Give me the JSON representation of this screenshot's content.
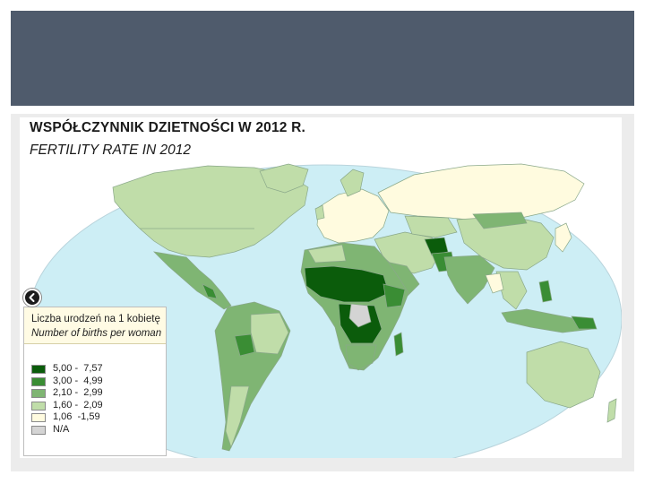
{
  "title_pl": "WSPÓŁCZYNNIK DZIETNOŚCI W 2012 R.",
  "title_en": "FERTILITY RATE IN 2012",
  "legend": {
    "heading_pl": "Liczba urodzeń na 1 kobietę",
    "heading_en": "Number of births per woman",
    "classes": [
      {
        "label": "5,00 -  7,57",
        "color": "#0b5c0b"
      },
      {
        "label": "3,00 -  4,99",
        "color": "#3a8d34"
      },
      {
        "label": "2,10 -  2,99",
        "color": "#7fb573"
      },
      {
        "label": "1,60 -  2,09",
        "color": "#c0dda9"
      },
      {
        "label": "1,06  -1,59",
        "color": "#fffbdf"
      },
      {
        "label": "N/A",
        "color": "#d4d4d4"
      }
    ]
  },
  "colors": {
    "header_band": "#4f5b6c",
    "ocean": "#cdeef5",
    "border_lines": "#8aa88a"
  },
  "icons": {
    "nav_back": "chevron-left-icon"
  }
}
